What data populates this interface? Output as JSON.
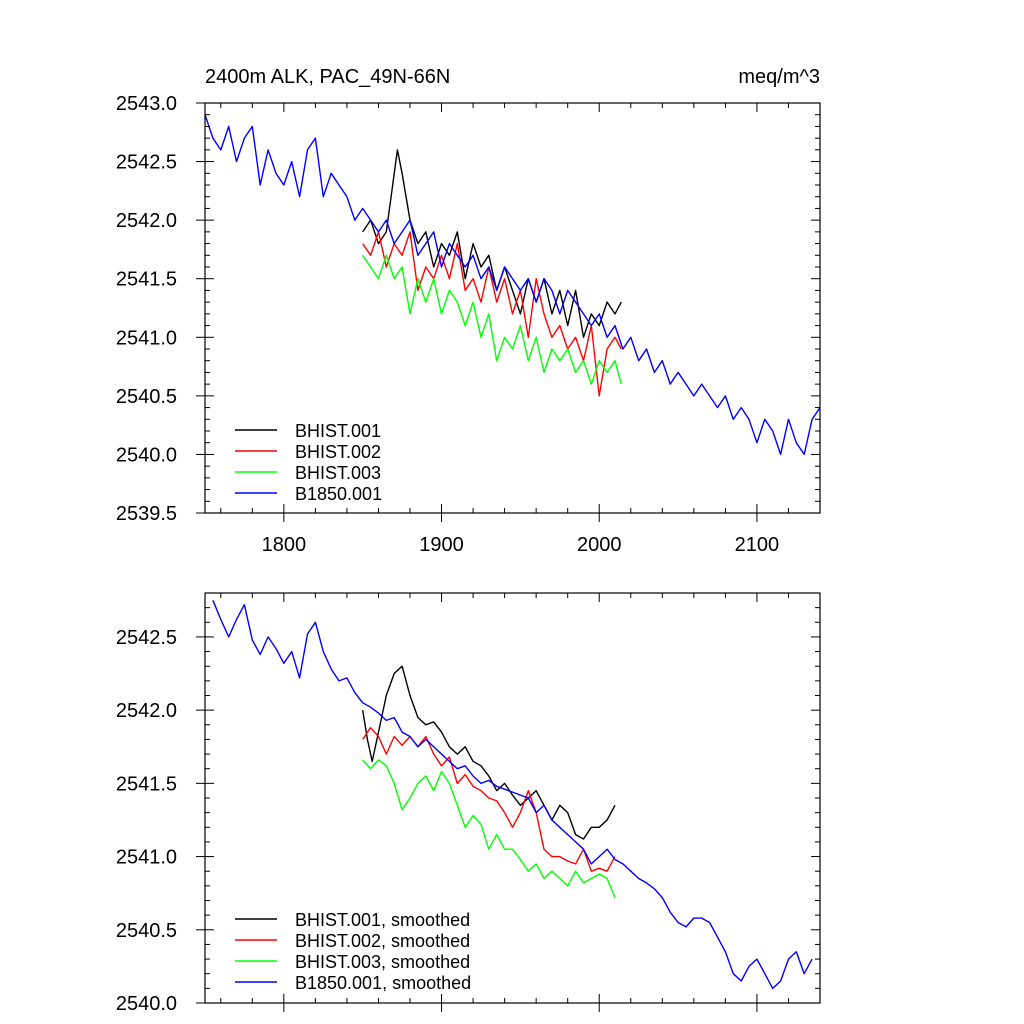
{
  "chart_data": [
    {
      "type": "line",
      "title": "2400m ALK, PAC_49N-66N",
      "units": "meq/m^3",
      "xlim": [
        1750,
        2140
      ],
      "ylim": [
        2539.5,
        2543.0
      ],
      "x_ticks": [
        1800,
        1900,
        2000,
        2100
      ],
      "x_tick_labels": [
        "1800",
        "1900",
        "2000",
        "2100"
      ],
      "y_ticks": [
        2539.5,
        2540.0,
        2540.5,
        2541.0,
        2541.5,
        2542.0,
        2542.5,
        2543.0
      ],
      "y_tick_labels": [
        "2539.5",
        "2540.0",
        "2540.5",
        "2541.0",
        "2541.5",
        "2542.0",
        "2542.5",
        "2543.0"
      ],
      "legend_position": "bottom-left",
      "series": [
        {
          "name": "BHIST.001",
          "color": "#000000",
          "x": [
            1850,
            1855,
            1860,
            1865,
            1868,
            1872,
            1875,
            1880,
            1885,
            1890,
            1895,
            1900,
            1905,
            1910,
            1915,
            1920,
            1925,
            1930,
            1935,
            1940,
            1945,
            1950,
            1955,
            1960,
            1965,
            1970,
            1975,
            1980,
            1985,
            1990,
            1995,
            2000,
            2005,
            2010,
            2014
          ],
          "y": [
            2541.9,
            2542.0,
            2541.8,
            2541.9,
            2542.2,
            2542.6,
            2542.4,
            2542.0,
            2541.8,
            2541.9,
            2541.6,
            2541.8,
            2541.7,
            2541.9,
            2541.5,
            2541.8,
            2541.6,
            2541.7,
            2541.4,
            2541.6,
            2541.4,
            2541.2,
            2541.5,
            2541.3,
            2541.5,
            2541.2,
            2541.4,
            2541.1,
            2541.4,
            2541.0,
            2541.2,
            2541.1,
            2541.3,
            2541.2,
            2541.3
          ]
        },
        {
          "name": "BHIST.002",
          "color": "#ff0000",
          "x": [
            1850,
            1855,
            1860,
            1865,
            1870,
            1875,
            1880,
            1885,
            1890,
            1895,
            1900,
            1905,
            1910,
            1915,
            1920,
            1925,
            1930,
            1935,
            1940,
            1945,
            1950,
            1955,
            1960,
            1965,
            1970,
            1975,
            1980,
            1985,
            1990,
            1995,
            2000,
            2005,
            2010,
            2014
          ],
          "y": [
            2541.8,
            2541.7,
            2541.9,
            2541.6,
            2541.8,
            2541.7,
            2541.9,
            2541.4,
            2541.6,
            2541.5,
            2541.7,
            2541.5,
            2541.8,
            2541.4,
            2541.5,
            2541.3,
            2541.6,
            2541.3,
            2541.5,
            2541.2,
            2541.4,
            2541.0,
            2541.5,
            2541.2,
            2541.0,
            2541.1,
            2540.9,
            2541.0,
            2540.8,
            2541.1,
            2540.5,
            2540.9,
            2541.0,
            2540.9
          ]
        },
        {
          "name": "BHIST.003",
          "color": "#00ff00",
          "x": [
            1850,
            1855,
            1860,
            1865,
            1870,
            1875,
            1880,
            1885,
            1890,
            1895,
            1900,
            1905,
            1910,
            1915,
            1920,
            1925,
            1930,
            1935,
            1940,
            1945,
            1950,
            1955,
            1960,
            1965,
            1970,
            1975,
            1980,
            1985,
            1990,
            1995,
            2000,
            2005,
            2010,
            2014
          ],
          "y": [
            2541.7,
            2541.6,
            2541.5,
            2541.7,
            2541.5,
            2541.6,
            2541.2,
            2541.5,
            2541.3,
            2541.5,
            2541.2,
            2541.4,
            2541.3,
            2541.1,
            2541.3,
            2541.0,
            2541.2,
            2540.8,
            2541.0,
            2540.9,
            2541.1,
            2540.8,
            2541.0,
            2540.7,
            2540.9,
            2540.8,
            2540.9,
            2540.7,
            2540.8,
            2540.6,
            2540.8,
            2540.7,
            2540.8,
            2540.6
          ]
        },
        {
          "name": "B1850.001",
          "color": "#0000ff",
          "x": [
            1750,
            1755,
            1760,
            1765,
            1770,
            1775,
            1780,
            1785,
            1790,
            1795,
            1800,
            1805,
            1810,
            1815,
            1820,
            1825,
            1830,
            1835,
            1840,
            1845,
            1850,
            1855,
            1860,
            1865,
            1870,
            1875,
            1880,
            1885,
            1890,
            1895,
            1900,
            1905,
            1910,
            1915,
            1920,
            1925,
            1930,
            1935,
            1940,
            1945,
            1950,
            1955,
            1960,
            1965,
            1970,
            1975,
            1980,
            1985,
            1990,
            1995,
            2000,
            2005,
            2010,
            2015,
            2020,
            2025,
            2030,
            2035,
            2040,
            2045,
            2050,
            2055,
            2060,
            2065,
            2070,
            2075,
            2080,
            2085,
            2090,
            2095,
            2100,
            2105,
            2110,
            2115,
            2120,
            2125,
            2130,
            2135,
            2140
          ],
          "y": [
            2542.9,
            2542.7,
            2542.6,
            2542.8,
            2542.5,
            2542.7,
            2542.8,
            2542.3,
            2542.6,
            2542.4,
            2542.3,
            2542.5,
            2542.2,
            2542.6,
            2542.7,
            2542.2,
            2542.4,
            2542.3,
            2542.2,
            2542.0,
            2542.1,
            2542.0,
            2541.9,
            2542.0,
            2541.8,
            2541.9,
            2542.0,
            2541.7,
            2541.8,
            2541.9,
            2541.6,
            2541.8,
            2541.7,
            2541.6,
            2541.7,
            2541.5,
            2541.6,
            2541.4,
            2541.6,
            2541.5,
            2541.4,
            2541.5,
            2541.3,
            2541.5,
            2541.4,
            2541.2,
            2541.4,
            2541.3,
            2541.2,
            2541.1,
            2541.2,
            2541.0,
            2541.1,
            2540.9,
            2541.0,
            2540.8,
            2540.9,
            2540.7,
            2540.8,
            2540.6,
            2540.7,
            2540.6,
            2540.5,
            2540.6,
            2540.5,
            2540.4,
            2540.5,
            2540.3,
            2540.4,
            2540.3,
            2540.1,
            2540.3,
            2540.2,
            2540.0,
            2540.3,
            2540.1,
            2540.0,
            2540.3,
            2540.4
          ]
        }
      ]
    },
    {
      "type": "line",
      "title": "",
      "xlim": [
        1750,
        2140
      ],
      "ylim": [
        2540.0,
        2542.8
      ],
      "x_ticks": [
        1800,
        1900,
        2000,
        2100
      ],
      "y_ticks": [
        2540.0,
        2540.5,
        2541.0,
        2541.5,
        2542.0,
        2542.5
      ],
      "y_tick_labels": [
        "2540.0",
        "2540.5",
        "2541.0",
        "2541.5",
        "2542.0",
        "2542.5"
      ],
      "legend_position": "bottom-left",
      "series": [
        {
          "name": "BHIST.001, smoothed",
          "color": "#000000",
          "x": [
            1850,
            1853,
            1856,
            1860,
            1865,
            1870,
            1875,
            1880,
            1885,
            1890,
            1895,
            1900,
            1905,
            1910,
            1915,
            1920,
            1925,
            1930,
            1935,
            1940,
            1945,
            1950,
            1955,
            1960,
            1965,
            1970,
            1975,
            1980,
            1985,
            1990,
            1995,
            2000,
            2005,
            2010
          ],
          "y": [
            2542.0,
            2541.8,
            2541.65,
            2541.85,
            2542.1,
            2542.25,
            2542.3,
            2542.1,
            2541.95,
            2541.9,
            2541.92,
            2541.85,
            2541.75,
            2541.7,
            2541.75,
            2541.65,
            2541.62,
            2541.55,
            2541.45,
            2541.5,
            2541.42,
            2541.35,
            2541.4,
            2541.45,
            2541.35,
            2541.25,
            2541.35,
            2541.3,
            2541.15,
            2541.12,
            2541.2,
            2541.2,
            2541.25,
            2541.35
          ]
        },
        {
          "name": "BHIST.002, smoothed",
          "color": "#ff0000",
          "x": [
            1850,
            1855,
            1860,
            1865,
            1870,
            1875,
            1880,
            1885,
            1890,
            1895,
            1900,
            1905,
            1910,
            1915,
            1920,
            1925,
            1930,
            1935,
            1940,
            1945,
            1950,
            1955,
            1960,
            1965,
            1970,
            1975,
            1980,
            1985,
            1990,
            1995,
            2000,
            2005,
            2010
          ],
          "y": [
            2541.8,
            2541.88,
            2541.82,
            2541.7,
            2541.82,
            2541.76,
            2541.82,
            2541.75,
            2541.82,
            2541.7,
            2541.62,
            2541.68,
            2541.5,
            2541.56,
            2541.48,
            2541.45,
            2541.4,
            2541.38,
            2541.3,
            2541.2,
            2541.3,
            2541.45,
            2541.3,
            2541.05,
            2541.0,
            2541.0,
            2540.97,
            2540.95,
            2541.05,
            2540.9,
            2540.92,
            2540.9,
            2541.0
          ]
        },
        {
          "name": "BHIST.003, smoothed",
          "color": "#00ff00",
          "x": [
            1850,
            1855,
            1860,
            1865,
            1870,
            1875,
            1880,
            1885,
            1890,
            1895,
            1900,
            1905,
            1910,
            1915,
            1920,
            1925,
            1930,
            1935,
            1940,
            1945,
            1950,
            1955,
            1960,
            1965,
            1970,
            1975,
            1980,
            1985,
            1990,
            1995,
            2000,
            2005,
            2010
          ],
          "y": [
            2541.66,
            2541.6,
            2541.66,
            2541.62,
            2541.5,
            2541.32,
            2541.4,
            2541.5,
            2541.55,
            2541.45,
            2541.58,
            2541.5,
            2541.35,
            2541.2,
            2541.28,
            2541.22,
            2541.05,
            2541.15,
            2541.05,
            2541.05,
            2540.98,
            2540.9,
            2540.95,
            2540.85,
            2540.9,
            2540.85,
            2540.8,
            2540.9,
            2540.82,
            2540.85,
            2540.88,
            2540.85,
            2540.72
          ]
        },
        {
          "name": "B1850.001, smoothed",
          "color": "#0000ff",
          "x": [
            1755,
            1760,
            1765,
            1770,
            1775,
            1780,
            1785,
            1790,
            1795,
            1800,
            1805,
            1810,
            1815,
            1820,
            1825,
            1830,
            1835,
            1840,
            1845,
            1850,
            1855,
            1860,
            1865,
            1870,
            1875,
            1880,
            1885,
            1890,
            1895,
            1900,
            1905,
            1910,
            1915,
            1920,
            1925,
            1930,
            1935,
            1940,
            1945,
            1950,
            1955,
            1960,
            1965,
            1970,
            1975,
            1980,
            1985,
            1990,
            1995,
            2000,
            2005,
            2010,
            2015,
            2020,
            2025,
            2030,
            2035,
            2040,
            2045,
            2050,
            2055,
            2060,
            2065,
            2070,
            2075,
            2080,
            2085,
            2090,
            2095,
            2100,
            2105,
            2110,
            2115,
            2120,
            2125,
            2130,
            2135
          ],
          "y": [
            2542.75,
            2542.62,
            2542.5,
            2542.62,
            2542.72,
            2542.48,
            2542.38,
            2542.5,
            2542.42,
            2542.32,
            2542.4,
            2542.22,
            2542.52,
            2542.6,
            2542.4,
            2542.28,
            2542.2,
            2542.22,
            2542.12,
            2542.05,
            2542.02,
            2541.98,
            2541.93,
            2541.95,
            2541.85,
            2541.82,
            2541.75,
            2541.8,
            2541.75,
            2541.7,
            2541.65,
            2541.6,
            2541.62,
            2541.55,
            2541.5,
            2541.52,
            2541.48,
            2541.46,
            2541.44,
            2541.42,
            2541.4,
            2541.3,
            2541.35,
            2541.25,
            2541.2,
            2541.15,
            2541.1,
            2541.05,
            2540.95,
            2541.0,
            2541.05,
            2540.98,
            2540.95,
            2540.9,
            2540.85,
            2540.82,
            2540.78,
            2540.72,
            2540.62,
            2540.55,
            2540.52,
            2540.58,
            2540.58,
            2540.55,
            2540.45,
            2540.35,
            2540.2,
            2540.15,
            2540.25,
            2540.3,
            2540.2,
            2540.1,
            2540.15,
            2540.3,
            2540.35,
            2540.2,
            2540.3
          ]
        }
      ]
    }
  ]
}
